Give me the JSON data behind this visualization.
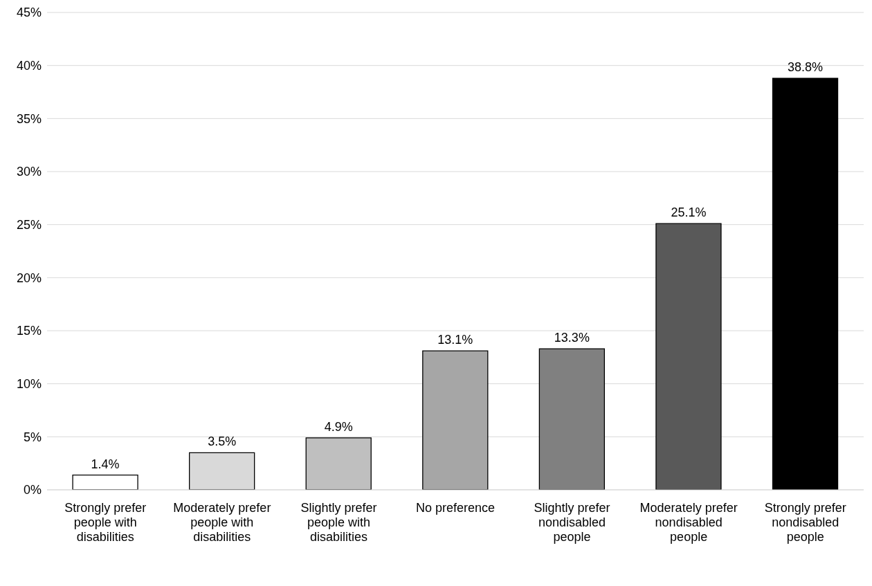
{
  "chart_data": {
    "type": "bar",
    "categories": [
      "Strongly prefer people with disabilities",
      "Moderately prefer people with disabilities",
      "Slightly prefer people with disabilities",
      "No preference",
      "Slightly prefer nondisabled people",
      "Moderately prefer nondisabled people",
      "Strongly prefer nondisabled people"
    ],
    "values": [
      1.4,
      3.5,
      4.9,
      13.1,
      13.3,
      25.1,
      38.8
    ],
    "colors": [
      "#ffffff",
      "#d9d9d9",
      "#bfbfbf",
      "#a6a6a6",
      "#808080",
      "#595959",
      "#000000"
    ],
    "value_labels": [
      "1.4%",
      "3.5%",
      "4.9%",
      "13.1%",
      "13.3%",
      "25.1%",
      "38.8%"
    ],
    "ylim": [
      0,
      45
    ],
    "yticks": [
      {
        "value": 0,
        "label": "0%"
      },
      {
        "value": 5,
        "label": "5%"
      },
      {
        "value": 10,
        "label": "10%"
      },
      {
        "value": 15,
        "label": "15%"
      },
      {
        "value": 20,
        "label": "20%"
      },
      {
        "value": 25,
        "label": "25%"
      },
      {
        "value": 30,
        "label": "30%"
      },
      {
        "value": 35,
        "label": "35%"
      },
      {
        "value": 40,
        "label": "40%"
      },
      {
        "value": 45,
        "label": "45%"
      }
    ],
    "grid": "y",
    "legend": false
  }
}
